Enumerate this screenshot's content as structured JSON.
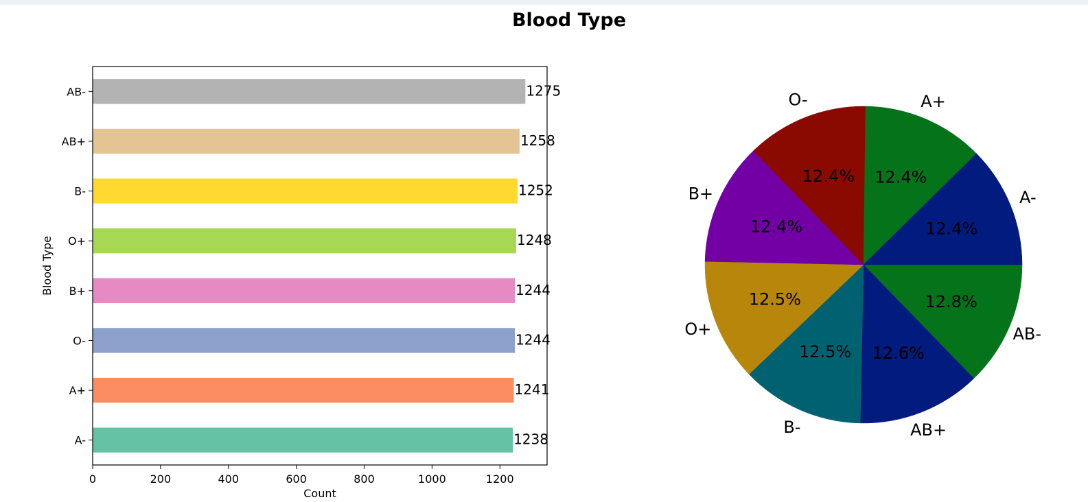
{
  "figure": {
    "title": "Blood Type"
  },
  "chart_data": [
    {
      "type": "bar",
      "orientation": "horizontal",
      "categories": [
        "A-",
        "A+",
        "O-",
        "B+",
        "O+",
        "B-",
        "AB+",
        "AB-"
      ],
      "values": [
        1238,
        1241,
        1244,
        1244,
        1248,
        1252,
        1258,
        1275
      ],
      "data_labels": [
        "1238",
        "1241",
        "1244",
        "1244",
        "1248",
        "1252",
        "1258",
        "1275"
      ],
      "colors": [
        "#66c2a5",
        "#fc8d62",
        "#8da0cb",
        "#e78ac3",
        "#a6d854",
        "#ffd92f",
        "#e5c494",
        "#b3b3b3"
      ],
      "xlabel": "Count",
      "ylabel": "Blood Type",
      "xlim": [
        0,
        1339
      ],
      "xticks": [
        0,
        200,
        400,
        600,
        800,
        1000,
        1200
      ],
      "xtick_labels": [
        "0",
        "200",
        "400",
        "600",
        "800",
        "1000",
        "1200"
      ],
      "grid": false
    },
    {
      "type": "pie",
      "labels": [
        "AB-",
        "AB+",
        "B-",
        "O+",
        "B+",
        "O-",
        "A+",
        "A-"
      ],
      "values": [
        1275,
        1258,
        1252,
        1248,
        1244,
        1244,
        1241,
        1238
      ],
      "pct_labels": [
        "12.8%",
        "12.6%",
        "12.5%",
        "12.5%",
        "12.4%",
        "12.4%",
        "12.4%",
        "12.4%"
      ],
      "colors": [
        "#04731a",
        "#021b7e",
        "#006270",
        "#b8860b",
        "#7200a4",
        "#8a0900",
        "#04731a",
        "#021b7e"
      ],
      "start_angle_deg": 0,
      "direction": "clockwise"
    }
  ]
}
